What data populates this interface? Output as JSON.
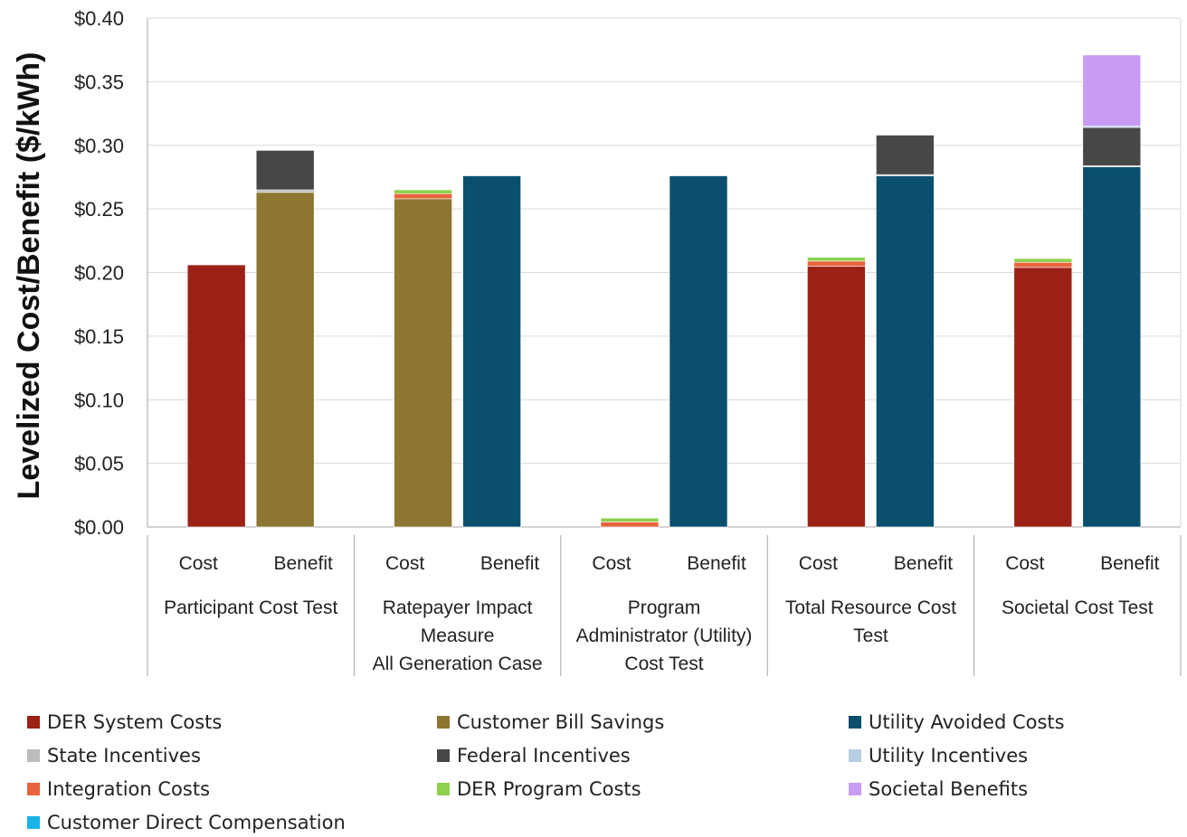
{
  "chart_data": {
    "type": "bar",
    "stacked": true,
    "ylabel": "Levelized Cost/Benefit ($/kWh)",
    "ylim": [
      0,
      0.4
    ],
    "yticks": [
      "$0.00",
      "$0.05",
      "$0.10",
      "$0.15",
      "$0.20",
      "$0.25",
      "$0.30",
      "$0.35",
      "$0.40"
    ],
    "grid": true,
    "legend_position": "bottom",
    "groups": [
      {
        "name_lines": [
          "Participant Cost Test"
        ]
      },
      {
        "name_lines": [
          "Ratepayer Impact",
          "Measure",
          "All Generation Case"
        ]
      },
      {
        "name_lines": [
          "Program",
          "Administrator (Utility)",
          "Cost Test"
        ]
      },
      {
        "name_lines": [
          "Total Resource Cost",
          "Test"
        ]
      },
      {
        "name_lines": [
          "Societal Cost Test"
        ]
      }
    ],
    "bar_labels": [
      "Cost",
      "Benefit"
    ],
    "series": [
      {
        "name": "DER System Costs",
        "color": "#9b2116"
      },
      {
        "name": "Customer Bill Savings",
        "color": "#8c7631"
      },
      {
        "name": "Utility Avoided Costs",
        "color": "#0a4f6e"
      },
      {
        "name": "State Incentives",
        "color": "#bcbcbc"
      },
      {
        "name": "Federal Incentives",
        "color": "#474747"
      },
      {
        "name": "Utility Incentives",
        "color": "#b8cce4"
      },
      {
        "name": "Integration Costs",
        "color": "#e8643c"
      },
      {
        "name": "DER Program Costs",
        "color": "#8dd14e"
      },
      {
        "name": "Societal Benefits",
        "color": "#c89cf2"
      },
      {
        "name": "Customer Direct Compensation",
        "color": "#1ab3e8"
      }
    ],
    "bars": [
      {
        "group": 0,
        "label": "Cost",
        "segments": [
          {
            "series": "DER System Costs",
            "value": 0.206
          }
        ]
      },
      {
        "group": 0,
        "label": "Benefit",
        "segments": [
          {
            "series": "Customer Bill Savings",
            "value": 0.263
          },
          {
            "series": "State Incentives",
            "value": 0.002
          },
          {
            "series": "Federal Incentives",
            "value": 0.031
          }
        ]
      },
      {
        "group": 1,
        "label": "Cost",
        "segments": [
          {
            "series": "Customer Bill Savings",
            "value": 0.258
          },
          {
            "series": "Integration Costs",
            "value": 0.004
          },
          {
            "series": "DER Program Costs",
            "value": 0.003
          }
        ]
      },
      {
        "group": 1,
        "label": "Benefit",
        "segments": [
          {
            "series": "Utility Avoided Costs",
            "value": 0.276
          }
        ]
      },
      {
        "group": 2,
        "label": "Cost",
        "segments": [
          {
            "series": "Integration Costs",
            "value": 0.004
          },
          {
            "series": "DER Program Costs",
            "value": 0.003
          }
        ]
      },
      {
        "group": 2,
        "label": "Benefit",
        "segments": [
          {
            "series": "Utility Avoided Costs",
            "value": 0.276
          }
        ]
      },
      {
        "group": 3,
        "label": "Cost",
        "segments": [
          {
            "series": "DER System Costs",
            "value": 0.205
          },
          {
            "series": "Integration Costs",
            "value": 0.004
          },
          {
            "series": "DER Program Costs",
            "value": 0.003
          }
        ]
      },
      {
        "group": 3,
        "label": "Benefit",
        "segments": [
          {
            "series": "Utility Avoided Costs",
            "value": 0.276
          },
          {
            "series": "State Incentives",
            "value": 0.001
          },
          {
            "series": "Federal Incentives",
            "value": 0.031
          }
        ]
      },
      {
        "group": 4,
        "label": "Cost",
        "segments": [
          {
            "series": "DER System Costs",
            "value": 0.204
          },
          {
            "series": "Integration Costs",
            "value": 0.004
          },
          {
            "series": "DER Program Costs",
            "value": 0.003
          }
        ]
      },
      {
        "group": 4,
        "label": "Benefit",
        "segments": [
          {
            "series": "Utility Avoided Costs",
            "value": 0.283
          },
          {
            "series": "State Incentives",
            "value": 0.001
          },
          {
            "series": "Federal Incentives",
            "value": 0.03
          },
          {
            "series": "Utility Incentives",
            "value": 0.001
          },
          {
            "series": "Societal Benefits",
            "value": 0.056
          }
        ]
      }
    ]
  }
}
